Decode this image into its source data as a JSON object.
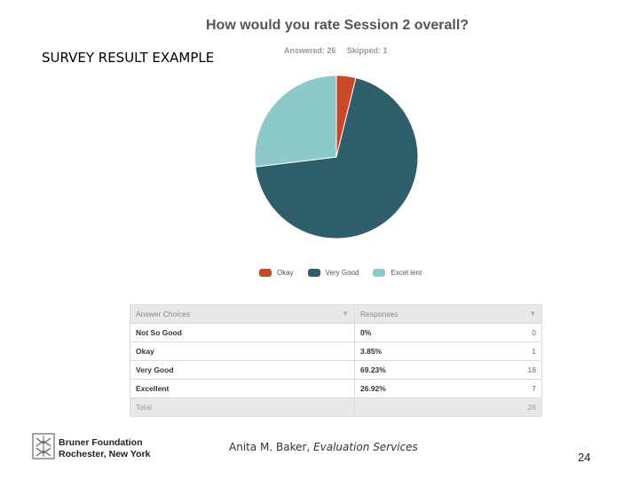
{
  "slide_label": "SURVEY RESULT  EXAMPLE",
  "chart_data": {
    "type": "pie",
    "title": "How would you rate Session 2 overall?",
    "answered_label": "Answered: 26",
    "skipped_label": "Skipped: 1",
    "slices": [
      {
        "name": "Okay",
        "percent": 3.85,
        "color": "#c9482a"
      },
      {
        "name": "Very Good",
        "percent": 69.23,
        "color": "#2e5e6b"
      },
      {
        "name": "Excellent",
        "percent": 26.92,
        "color": "#8ec9ca"
      }
    ],
    "legend": [
      "Okay",
      "Very Good",
      "Excel lent"
    ],
    "legend_placement": "bottom"
  },
  "table": {
    "headers": [
      "Answer Choices",
      "Responses"
    ],
    "rows": [
      {
        "choice": "Not So Good",
        "percent": "0%",
        "count": "0"
      },
      {
        "choice": "Okay",
        "percent": "3.85%",
        "count": "1"
      },
      {
        "choice": "Very Good",
        "percent": "69.23%",
        "count": "18"
      },
      {
        "choice": "Excellent",
        "percent": "26.92%",
        "count": "7"
      }
    ],
    "total_label": "Total",
    "total_count": "26"
  },
  "footer": {
    "org_line1": "Bruner Foundation",
    "org_line2": "Rochester, New York",
    "presenter_name": "Anita M. Baker, ",
    "presenter_role": "Evaluation Services",
    "page_number": "24"
  }
}
